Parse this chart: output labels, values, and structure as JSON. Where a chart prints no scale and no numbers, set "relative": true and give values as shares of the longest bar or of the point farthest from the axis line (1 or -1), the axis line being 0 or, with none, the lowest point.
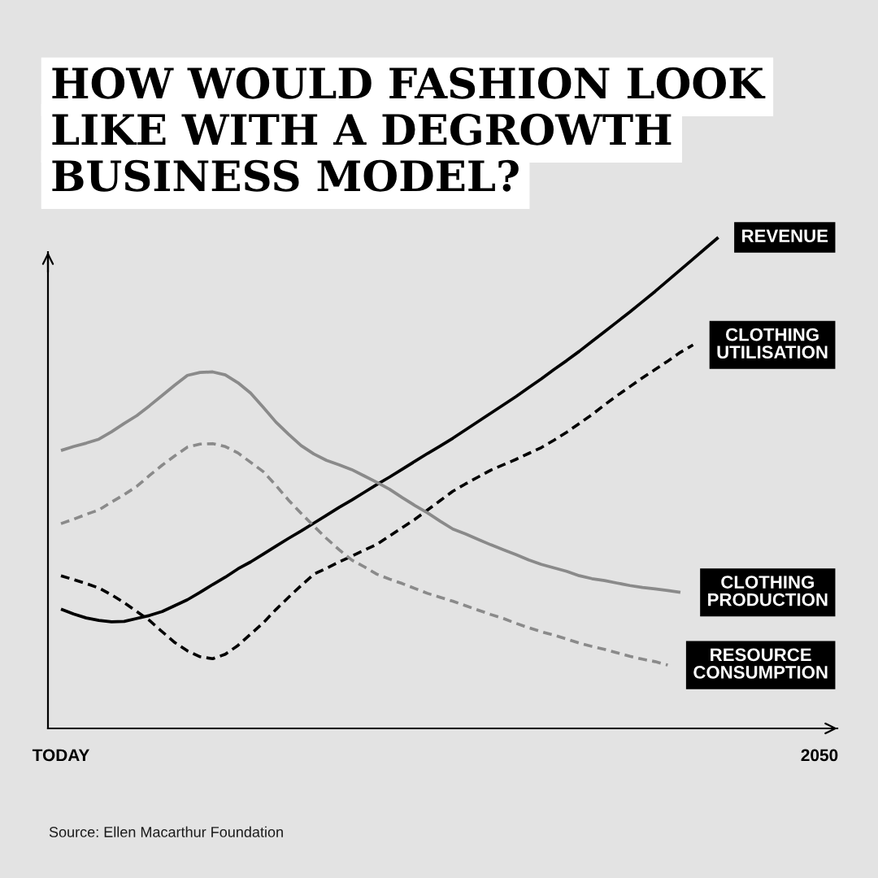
{
  "chart_data": {
    "type": "line",
    "relative": true,
    "title": "HOW WOULD FASHION LOOK\nLIKE WITH A DEGROWTH\nBUSINESS MODEL?",
    "categories": [
      "TODAY",
      null,
      null,
      null,
      null,
      null,
      null,
      null,
      null,
      null,
      null,
      null,
      null,
      null,
      null,
      null,
      null,
      null,
      null,
      null,
      null,
      null,
      null,
      null,
      null,
      null,
      null,
      null,
      null,
      null,
      null,
      null,
      null,
      null,
      null,
      null,
      null,
      null,
      null,
      null,
      null,
      null,
      null,
      null,
      null,
      null,
      null,
      null,
      null,
      null,
      null,
      null,
      null,
      null,
      null,
      null,
      null,
      null,
      null,
      null,
      "2050"
    ],
    "series": [
      {
        "name": "REVENUE",
        "color": "#000000",
        "line_style": "solid",
        "values": [
          0.243,
          0.233,
          0.225,
          0.22,
          0.217,
          0.218,
          0.224,
          0.23,
          0.238,
          0.25,
          0.262,
          0.277,
          0.293,
          0.308,
          0.325,
          0.339,
          0.355,
          0.371,
          0.387,
          0.402,
          0.418,
          0.434,
          0.45,
          0.465,
          0.481,
          0.497,
          0.512,
          0.528,
          0.544,
          0.56,
          0.575,
          0.591,
          0.608,
          0.625,
          0.642,
          0.659,
          0.676,
          0.694,
          0.712,
          0.731,
          0.749,
          0.768,
          0.788,
          0.808,
          0.828,
          0.848,
          0.869,
          0.89,
          0.912,
          0.934,
          0.956,
          0.978,
          1.0,
          null,
          null,
          null,
          null,
          null,
          null,
          null,
          null
        ]
      },
      {
        "name": "CLOTHING\nUTILISATION",
        "color": "#000000",
        "line_style": "dashed",
        "values": [
          0.311,
          0.303,
          0.295,
          0.286,
          0.272,
          0.256,
          0.238,
          0.22,
          0.197,
          0.175,
          0.158,
          0.146,
          0.142,
          0.151,
          0.169,
          0.192,
          0.215,
          0.242,
          0.267,
          0.291,
          0.314,
          0.326,
          0.339,
          0.351,
          0.363,
          0.375,
          0.392,
          0.409,
          0.426,
          0.445,
          0.464,
          0.483,
          0.498,
          0.512,
          0.526,
          0.537,
          0.548,
          0.56,
          0.572,
          0.587,
          0.603,
          0.621,
          0.639,
          0.659,
          0.678,
          0.696,
          0.714,
          0.731,
          0.748,
          0.766,
          0.781,
          null,
          null,
          null,
          null,
          null,
          null,
          null,
          null,
          null,
          null
        ]
      },
      {
        "name": "CLOTHING\nPRODUCTION",
        "color": "#8a8a8a",
        "line_style": "solid",
        "values": [
          0.566,
          0.574,
          0.581,
          0.589,
          0.604,
          0.621,
          0.637,
          0.657,
          0.678,
          0.699,
          0.719,
          0.725,
          0.726,
          0.72,
          0.704,
          0.683,
          0.654,
          0.624,
          0.599,
          0.576,
          0.559,
          0.546,
          0.537,
          0.527,
          0.514,
          0.501,
          0.487,
          0.47,
          0.454,
          0.439,
          0.422,
          0.406,
          0.396,
          0.385,
          0.374,
          0.364,
          0.354,
          0.343,
          0.334,
          0.327,
          0.32,
          0.311,
          0.305,
          0.301,
          0.296,
          0.291,
          0.287,
          0.284,
          0.281,
          0.277,
          null,
          null,
          null,
          null,
          null,
          null,
          null,
          null,
          null,
          null,
          null
        ]
      },
      {
        "name": "RESOURCE\nCONSUMPTION",
        "color": "#8a8a8a",
        "line_style": "dashed",
        "values": [
          0.417,
          0.426,
          0.436,
          0.445,
          0.461,
          0.476,
          0.493,
          0.515,
          0.536,
          0.555,
          0.573,
          0.579,
          0.58,
          0.574,
          0.561,
          0.542,
          0.523,
          0.495,
          0.465,
          0.438,
          0.412,
          0.387,
          0.364,
          0.343,
          0.329,
          0.314,
          0.304,
          0.295,
          0.285,
          0.275,
          0.267,
          0.259,
          0.25,
          0.241,
          0.232,
          0.224,
          0.214,
          0.205,
          0.197,
          0.19,
          0.182,
          0.174,
          0.167,
          0.161,
          0.154,
          0.147,
          0.141,
          0.136,
          0.129,
          null,
          null,
          null,
          null,
          null,
          null,
          null,
          null,
          null,
          null,
          null,
          null
        ]
      }
    ],
    "annotations": [
      "Source: Ellen Macarthur Foundation"
    ]
  }
}
